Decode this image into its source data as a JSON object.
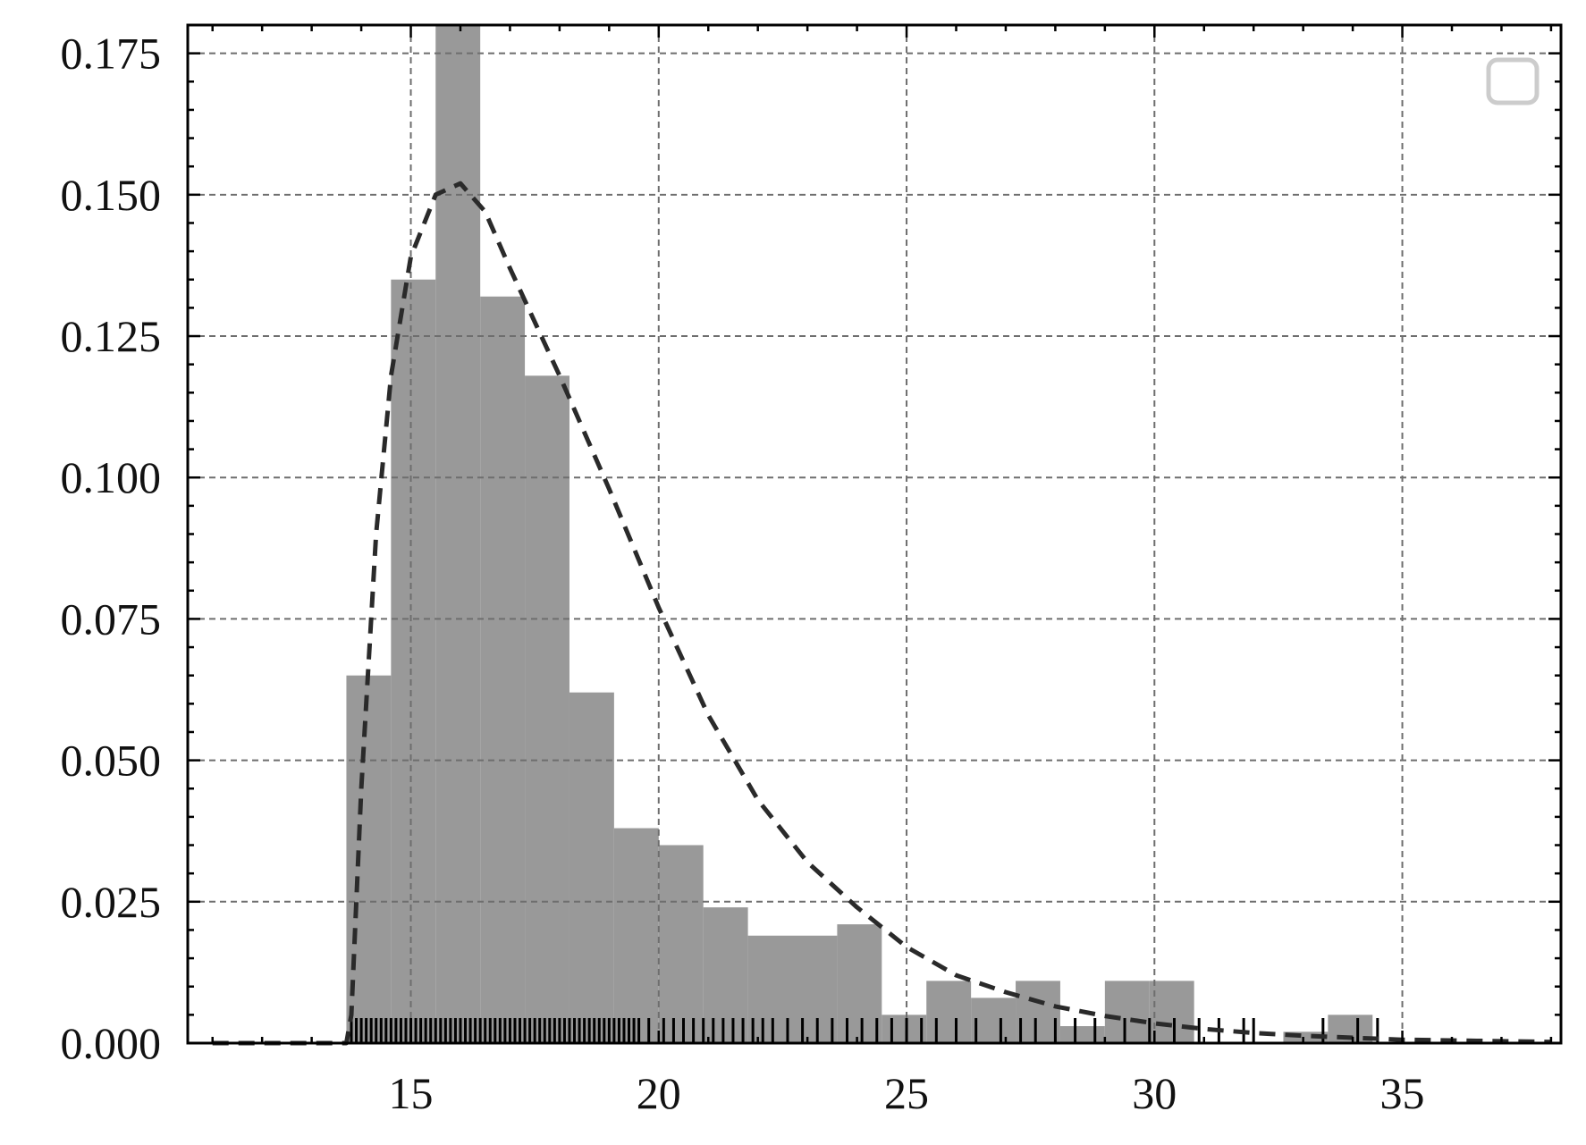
{
  "chart_data": {
    "type": "bar",
    "title": "",
    "xlabel": "",
    "ylabel": "",
    "xlim": [
      10.5,
      38.2
    ],
    "ylim": [
      0,
      0.18
    ],
    "grid": true,
    "legend": "top-right (empty)",
    "x_ticks": [
      15,
      20,
      25,
      30,
      35
    ],
    "x_tick_labels": [
      "15",
      "20",
      "25",
      "30",
      "35"
    ],
    "y_ticks": [
      0,
      0.025,
      0.05,
      0.075,
      0.1,
      0.125,
      0.15,
      0.175
    ],
    "y_tick_labels": [
      "0.000",
      "0.025",
      "0.050",
      "0.075",
      "0.100",
      "0.125",
      "0.150",
      "0.175"
    ],
    "histogram": {
      "bin_edges": [
        13.7,
        14.6,
        15.5,
        16.4,
        17.3,
        18.2,
        19.1,
        20.0,
        20.9,
        21.8,
        22.7,
        23.6,
        24.5,
        25.4,
        26.3,
        27.2,
        28.1,
        29.0,
        29.9,
        30.8,
        31.7,
        32.6,
        33.5,
        34.4
      ],
      "density": [
        0.065,
        0.135,
        0.18,
        0.132,
        0.118,
        0.062,
        0.038,
        0.035,
        0.024,
        0.019,
        0.019,
        0.021,
        0.005,
        0.011,
        0.008,
        0.011,
        0.003,
        0.011,
        0.011,
        0.0,
        0.0,
        0.002,
        0.005
      ],
      "color": "#999999"
    },
    "fit_curve": {
      "style": "dashed",
      "color": "#2a2a2a",
      "x": [
        11.0,
        13.7,
        13.8,
        14.0,
        14.3,
        14.6,
        15.0,
        15.5,
        16.0,
        16.5,
        17.0,
        18.0,
        19.0,
        20.0,
        21.0,
        22.0,
        23.0,
        24.0,
        25.0,
        26.0,
        27.0,
        28.0,
        29.0,
        30.0,
        31.0,
        32.0,
        33.0,
        35.0,
        38.0
      ],
      "y": [
        0.0,
        0.0,
        0.005,
        0.045,
        0.09,
        0.118,
        0.139,
        0.15,
        0.152,
        0.147,
        0.137,
        0.118,
        0.098,
        0.077,
        0.058,
        0.043,
        0.032,
        0.024,
        0.017,
        0.012,
        0.009,
        0.0065,
        0.0048,
        0.0035,
        0.0025,
        0.0018,
        0.0013,
        0.0006,
        0.0002
      ]
    },
    "rug": {
      "color": "#000000",
      "values": [
        13.8,
        13.9,
        14.0,
        14.1,
        14.2,
        14.3,
        14.4,
        14.5,
        14.6,
        14.7,
        14.8,
        14.9,
        15.0,
        15.1,
        15.2,
        15.3,
        15.4,
        15.5,
        15.6,
        15.7,
        15.8,
        15.9,
        16.0,
        16.1,
        16.2,
        16.3,
        16.4,
        16.5,
        16.6,
        16.7,
        16.8,
        16.9,
        17.0,
        17.1,
        17.2,
        17.3,
        17.4,
        17.5,
        17.6,
        17.7,
        17.8,
        17.9,
        18.0,
        18.1,
        18.2,
        18.3,
        18.4,
        18.5,
        18.6,
        18.7,
        18.8,
        18.9,
        19.0,
        19.1,
        19.2,
        19.3,
        19.4,
        19.5,
        19.6,
        19.8,
        20.1,
        20.3,
        20.5,
        20.7,
        20.9,
        21.1,
        21.3,
        21.5,
        21.7,
        21.9,
        22.1,
        22.3,
        22.6,
        22.9,
        23.2,
        23.5,
        23.8,
        24.1,
        24.4,
        24.7,
        25.0,
        25.3,
        25.6,
        26.0,
        26.4,
        26.9,
        27.3,
        27.6,
        28.0,
        28.4,
        28.8,
        29.4,
        29.9,
        30.4,
        30.9,
        31.3,
        31.8,
        32.0,
        33.4,
        34.1,
        34.5
      ]
    }
  }
}
